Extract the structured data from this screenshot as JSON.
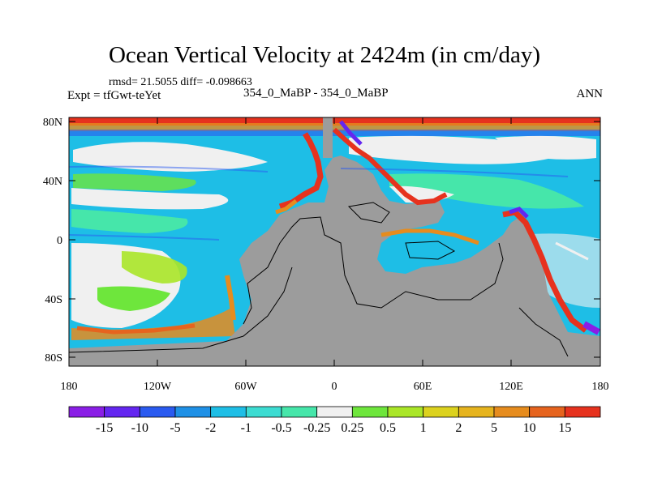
{
  "title": "Ocean Vertical Velocity at 2424m (in cm/day)",
  "stats": "rmsd= 21.5055 diff= -0.098663",
  "expt": "Expt = tfGwt-teYet",
  "center_label": "354_0_MaBP - 354_0_MaBP",
  "season": "ANN",
  "colors": {
    "land": "#9c9c9c",
    "frame": "#000000"
  },
  "chart_data": {
    "type": "heatmap",
    "lat_ticks": [
      "80N",
      "40N",
      "0",
      "40S",
      "80S"
    ],
    "lon_ticks": [
      "180",
      "120W",
      "60W",
      "0",
      "60E",
      "120E",
      "180"
    ],
    "colorbar": {
      "labels": [
        "-15",
        "-10",
        "-5",
        "-2",
        "-1",
        "-0.5",
        "-0.25",
        "0.25",
        "0.5",
        "1",
        "2",
        "5",
        "10",
        "15"
      ],
      "colors": [
        "#8a1ee6",
        "#6426f0",
        "#2a5af0",
        "#1e90e6",
        "#1ebee6",
        "#3cdcd2",
        "#46e6aa",
        "#f0f0f0",
        "#6ee63c",
        "#aae628",
        "#dcd21e",
        "#e6b41e",
        "#e68c1e",
        "#e6641e",
        "#e6321e"
      ]
    }
  }
}
